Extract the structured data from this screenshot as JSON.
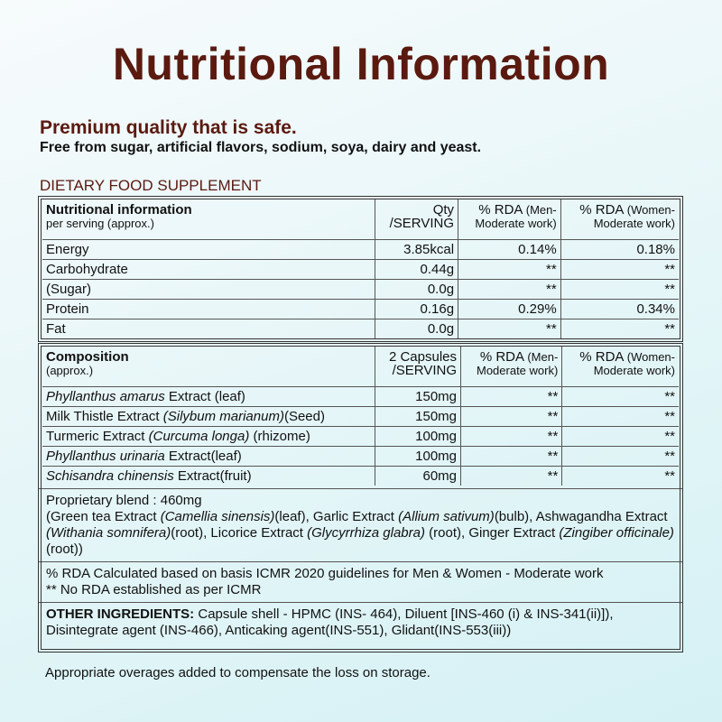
{
  "title": "Nutritional Information",
  "tagline": "Premium quality that is safe.",
  "claim": "Free from sugar, artificial flavors, sodium, soya, dairy and yeast.",
  "section_label": "DIETARY FOOD SUPPLEMENT",
  "nutrition": {
    "header": {
      "name": "Nutritional information",
      "sub": "per serving (approx.)",
      "qty": [
        "Qty",
        "/SERVING"
      ],
      "rda_men": {
        "main": "% RDA",
        "note": "(Men-",
        "line2": "Moderate work)"
      },
      "rda_women": {
        "main": "% RDA",
        "note": "(Women-",
        "line2": "Moderate work)"
      }
    },
    "rows": [
      [
        "Energy",
        "3.85kcal",
        "0.14%",
        "0.18%"
      ],
      [
        "Carbohydrate",
        "0.44g",
        "**",
        "**"
      ],
      [
        "(Sugar)",
        "0.0g",
        "**",
        "**"
      ],
      [
        "Protein",
        "0.16g",
        "0.29%",
        "0.34%"
      ],
      [
        "Fat",
        "0.0g",
        "**",
        "**"
      ]
    ]
  },
  "composition": {
    "header": {
      "name": "Composition",
      "sub": "(approx.)",
      "qty": [
        "2 Capsules",
        "/SERVING"
      ],
      "rda_men": {
        "main": "% RDA",
        "note": "(Men-",
        "line2": "Moderate work)"
      },
      "rda_women": {
        "main": "% RDA",
        "note": "(Women-",
        "line2": "Moderate work)"
      }
    },
    "rows": [
      [
        [
          {
            "text": "Phyllanthus amarus",
            "italic": true
          },
          {
            "text": " Extract (leaf)"
          }
        ],
        "150mg",
        "**",
        "**"
      ],
      [
        [
          {
            "text": "Milk Thistle Extract "
          },
          {
            "text": "(Silybum marianum)",
            "italic": true
          },
          {
            "text": "(Seed)"
          }
        ],
        "150mg",
        "**",
        "**"
      ],
      [
        [
          {
            "text": "Turmeric Extract "
          },
          {
            "text": "(Curcuma longa)",
            "italic": true
          },
          {
            "text": " (rhizome)"
          }
        ],
        "100mg",
        "**",
        "**"
      ],
      [
        [
          {
            "text": "Phyllanthus urinaria",
            "italic": true
          },
          {
            "text": " Extract(leaf)"
          }
        ],
        "100mg",
        "**",
        "**"
      ],
      [
        [
          {
            "text": "Schisandra chinensis",
            "italic": true
          },
          {
            "text": " Extract(fruit)"
          }
        ],
        "60mg",
        "**",
        "**"
      ]
    ]
  },
  "blend": {
    "title": "Proprietary blend : 460mg",
    "text": [
      {
        "text": "(Green tea Extract "
      },
      {
        "text": "(Camellia sinensis)",
        "italic": true
      },
      {
        "text": "(leaf), Garlic Extract "
      },
      {
        "text": "(Allium sativum)",
        "italic": true
      },
      {
        "text": "(bulb), Ashwagandha Extract "
      },
      {
        "text": "(Withania somnifera)",
        "italic": true
      },
      {
        "text": "(root), Licorice Extract "
      },
      {
        "text": "(Glycyrrhiza glabra)",
        "italic": true
      },
      {
        "text": " (root), Ginger Extract "
      },
      {
        "text": "(Zingiber officinale)",
        "italic": true
      },
      {
        "text": " (root))"
      }
    ]
  },
  "notes": [
    "% RDA Calculated based on basis ICMR 2020 guidelines for Men & Women - Moderate work",
    "** No RDA established as per ICMR"
  ],
  "other_ingredients": {
    "label": "OTHER INGREDIENTS:",
    "text": " Capsule shell - HPMC (INS- 464), Diluent [INS-460 (i) & INS-341(ii)]), Disintegrate agent (INS-466), Anticaking agent(INS-551), Glidant(INS-553(iii))"
  },
  "footer": "Appropriate overages added to compensate the loss on storage."
}
